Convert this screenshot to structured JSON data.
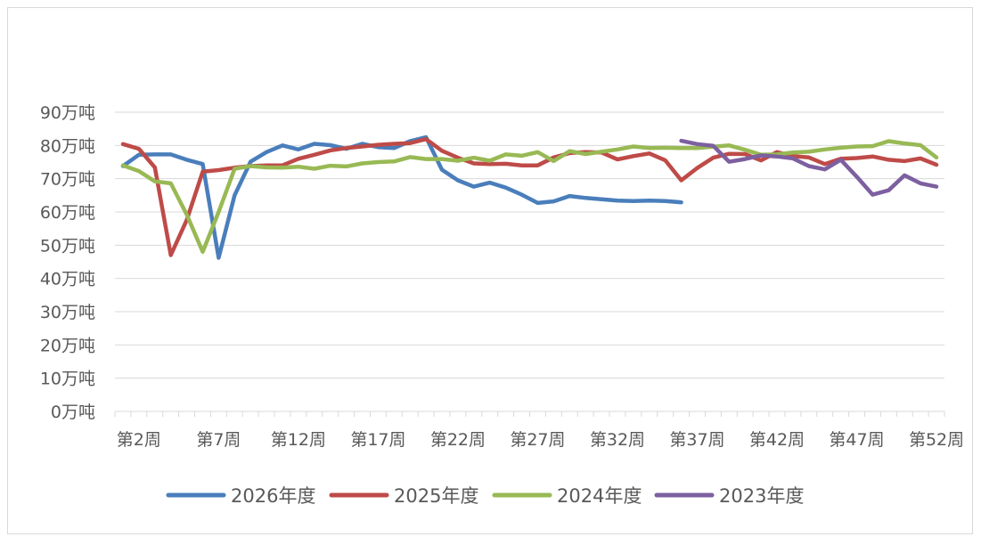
{
  "chart_data": {
    "type": "line",
    "title": "",
    "xlabel": "",
    "ylabel": "",
    "ylim": [
      0,
      90
    ],
    "yticks": [
      0,
      10,
      20,
      30,
      40,
      50,
      60,
      70,
      80,
      90
    ],
    "ytick_labels": [
      "0万吨",
      "10万吨",
      "20万吨",
      "30万吨",
      "40万吨",
      "50万吨",
      "60万吨",
      "70万吨",
      "80万吨",
      "90万吨"
    ],
    "x": [
      "第1周",
      "第2周",
      "第3周",
      "第4周",
      "第5周",
      "第6周",
      "第7周",
      "第8周",
      "第9周",
      "第10周",
      "第11周",
      "第12周",
      "第13周",
      "第14周",
      "第15周",
      "第16周",
      "第17周",
      "第18周",
      "第19周",
      "第20周",
      "第21周",
      "第22周",
      "第23周",
      "第24周",
      "第25周",
      "第26周",
      "第27周",
      "第28周",
      "第29周",
      "第30周",
      "第31周",
      "第32周",
      "第33周",
      "第34周",
      "第35周",
      "第36周",
      "第37周",
      "第38周",
      "第39周",
      "第40周",
      "第41周",
      "第42周",
      "第43周",
      "第44周",
      "第45周",
      "第46周",
      "第47周",
      "第48周",
      "第49周",
      "第50周",
      "第51周",
      "第52周"
    ],
    "xtick_labels": [
      "第2周",
      "第7周",
      "第12周",
      "第17周",
      "第22周",
      "第27周",
      "第32周",
      "第37周",
      "第42周",
      "第47周",
      "第52周"
    ],
    "legend_position": "bottom",
    "grid": true,
    "series": [
      {
        "name": "2026年度",
        "color": "#4a7ebb",
        "values": [
          73.8,
          77.2,
          77.3,
          77.3,
          75.7,
          74.4,
          46.2,
          65,
          75.1,
          78,
          80,
          78.8,
          80.5,
          80.1,
          79,
          80.5,
          79.5,
          79.2,
          81.3,
          82.5,
          72.7,
          69.5,
          67.6,
          68.8,
          67.3,
          65.2,
          62.7,
          63.2,
          64.8,
          64.2,
          63.8,
          63.4,
          63.3,
          63.4,
          63.3,
          62.9,
          null,
          null,
          null,
          null,
          null,
          null,
          null,
          null,
          null,
          null,
          null,
          null,
          null,
          null,
          null,
          null
        ]
      },
      {
        "name": "2025年度",
        "color": "#be4b48",
        "values": [
          80.4,
          79,
          73.4,
          47,
          57.6,
          72.1,
          72.6,
          73.3,
          73.8,
          74,
          74,
          76,
          77.2,
          78.5,
          79.2,
          79.7,
          80.2,
          80.5,
          80.7,
          81.9,
          78.4,
          76.3,
          74.6,
          74.4,
          74.5,
          74,
          74,
          76.4,
          77.7,
          78,
          77.9,
          75.8,
          76.8,
          77.6,
          75.5,
          69.5,
          73.2,
          76.3,
          77.5,
          77.4,
          75.5,
          78,
          76.8,
          76.4,
          74.4,
          76,
          76.2,
          76.7,
          75.7,
          75.3,
          76.1,
          74.2
        ]
      },
      {
        "name": "2024年度",
        "color": "#98b954",
        "values": [
          74,
          72.3,
          69.2,
          68.6,
          59.2,
          48,
          60,
          73,
          73.8,
          73.4,
          73.3,
          73.6,
          73,
          73.9,
          73.7,
          74.6,
          75,
          75.2,
          76.5,
          75.9,
          75.9,
          75.4,
          76.3,
          75.4,
          77.3,
          76.9,
          78,
          75.3,
          78.3,
          77.4,
          78.1,
          78.8,
          79.7,
          79.2,
          79.3,
          79.2,
          79.2,
          79.6,
          80,
          78.7,
          77.2,
          77.3,
          77.9,
          78.1,
          78.8,
          79.3,
          79.7,
          79.8,
          81.3,
          80.6,
          80.1,
          76.4
        ]
      },
      {
        "name": "2023年度",
        "color": "#7d60a0",
        "values": [
          null,
          null,
          null,
          null,
          null,
          null,
          null,
          null,
          null,
          null,
          null,
          null,
          null,
          null,
          null,
          null,
          null,
          null,
          null,
          null,
          null,
          null,
          null,
          null,
          null,
          null,
          null,
          null,
          null,
          null,
          null,
          null,
          null,
          null,
          null,
          81.4,
          80.4,
          79.9,
          75.1,
          75.9,
          77,
          76.7,
          76.1,
          73.8,
          72.8,
          75.7,
          70.6,
          65.2,
          66.5,
          71,
          68.6,
          67.6
        ]
      }
    ]
  }
}
